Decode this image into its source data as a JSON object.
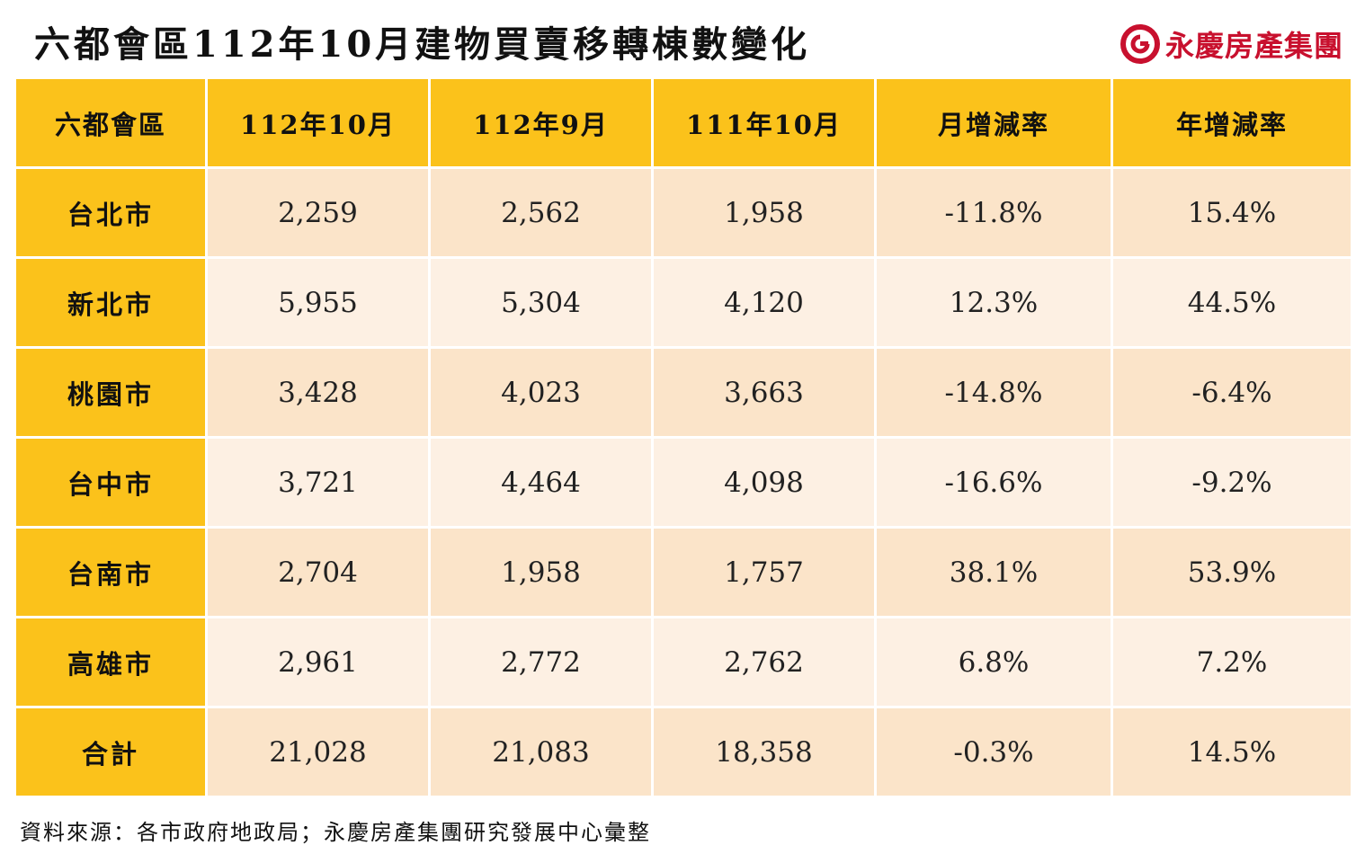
{
  "title": "六都會區112年10月建物買賣移轉棟數變化",
  "logo_text": "永慶房產集團",
  "colors": {
    "header_bg": "#fbc21b",
    "row_odd_bg": "#fbe4c9",
    "row_even_bg": "#fdf0e3",
    "logo_red": "#c8102e"
  },
  "table": {
    "headers": [
      "六都會區",
      "112年10月",
      "112年9月",
      "111年10月",
      "月增減率",
      "年增減率"
    ],
    "rows": [
      [
        "台北市",
        "2,259",
        "2,562",
        "1,958",
        "-11.8%",
        "15.4%"
      ],
      [
        "新北市",
        "5,955",
        "5,304",
        "4,120",
        "12.3%",
        "44.5%"
      ],
      [
        "桃園市",
        "3,428",
        "4,023",
        "3,663",
        "-14.8%",
        "-6.4%"
      ],
      [
        "台中市",
        "3,721",
        "4,464",
        "4,098",
        "-16.6%",
        "-9.2%"
      ],
      [
        "台南市",
        "2,704",
        "1,958",
        "1,757",
        "38.1%",
        "53.9%"
      ],
      [
        "高雄市",
        "2,961",
        "2,772",
        "2,762",
        "6.8%",
        "7.2%"
      ],
      [
        "合計",
        "21,028",
        "21,083",
        "18,358",
        "-0.3%",
        "14.5%"
      ]
    ]
  },
  "footer": "資料來源：各市政府地政局；永慶房產集團研究發展中心彙整"
}
